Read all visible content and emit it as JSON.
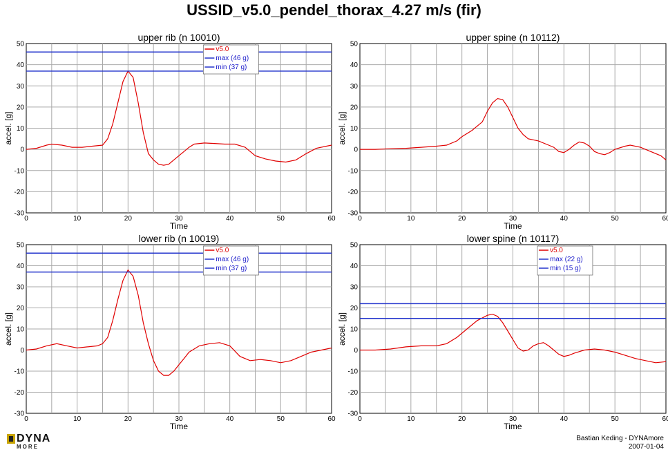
{
  "title": "USSID_v5.0_pendel_thorax_4.27 m/s (fir)",
  "footer": {
    "logo_text": "DYNA",
    "logo_sub": "MORE",
    "author": "Bastian Keding - DYNAmore",
    "date": "2007-01-04"
  },
  "chart_data": [
    {
      "type": "line",
      "title": "upper  rib (n 10010)",
      "xlabel": "Time",
      "ylabel": "accel. [g]",
      "xlim": [
        0,
        60
      ],
      "ylim": [
        -30,
        50
      ],
      "xticks": [
        0,
        10,
        20,
        30,
        40,
        50,
        60
      ],
      "yticks": [
        -30,
        -20,
        -10,
        0,
        10,
        20,
        30,
        40,
        50
      ],
      "grid": true,
      "legend_position": "top-center",
      "series": [
        {
          "name": "v5.0",
          "color": "#e00000",
          "x": [
            0,
            2,
            4,
            5,
            7,
            9,
            11,
            13,
            15,
            16,
            17,
            18,
            19,
            20,
            21,
            22,
            23,
            24,
            25,
            26,
            27,
            28,
            29,
            30,
            31,
            32,
            33,
            35,
            37,
            39,
            41,
            43,
            45,
            47,
            49,
            51,
            53,
            55,
            57,
            59,
            60
          ],
          "y": [
            0,
            0.5,
            2,
            2.5,
            2,
            1,
            1,
            1.5,
            2,
            5,
            12,
            22,
            32,
            37,
            34,
            22,
            8,
            -2,
            -5,
            -7,
            -7.5,
            -7,
            -5,
            -3,
            -1,
            1,
            2.5,
            3,
            2.8,
            2.5,
            2.5,
            1,
            -3,
            -4.5,
            -5.5,
            -6,
            -5,
            -2,
            0.5,
            1.5,
            2
          ]
        },
        {
          "name": "max (46 g)",
          "color": "#2233cc",
          "const": 46
        },
        {
          "name": "min (37 g)",
          "color": "#2233cc",
          "const": 37
        }
      ]
    },
    {
      "type": "line",
      "title": "upper spine (n 10112)",
      "xlabel": "Time",
      "ylabel": "accel. [g]",
      "xlim": [
        0,
        60
      ],
      "ylim": [
        -30,
        50
      ],
      "xticks": [
        0,
        10,
        20,
        30,
        40,
        50,
        60
      ],
      "yticks": [
        -30,
        -20,
        -10,
        0,
        10,
        20,
        30,
        40,
        50
      ],
      "grid": true,
      "legend_position": "none",
      "series": [
        {
          "name": "",
          "color": "#e00000",
          "x": [
            0,
            3,
            6,
            9,
            12,
            15,
            17,
            19,
            20,
            22,
            24,
            25,
            26,
            27,
            28,
            29,
            30,
            31,
            32,
            33,
            35,
            37,
            38,
            39,
            40,
            41,
            42,
            43,
            44,
            45,
            46,
            47,
            48,
            49,
            50,
            52,
            53,
            55,
            57,
            59,
            60
          ],
          "y": [
            0,
            0,
            0.3,
            0.5,
            1,
            1.5,
            2,
            4,
            6,
            9,
            13,
            18,
            22,
            24,
            23.5,
            20,
            15,
            10,
            7,
            5,
            4,
            2,
            1,
            -1,
            -1.5,
            0,
            2,
            3.5,
            3,
            1.5,
            -1,
            -2,
            -2.5,
            -1.5,
            0,
            1.5,
            2,
            1,
            -1,
            -3,
            -5
          ]
        }
      ]
    },
    {
      "type": "line",
      "title": "lower rib (n 10019)",
      "xlabel": "Time",
      "ylabel": "accel. [g]",
      "xlim": [
        0,
        60
      ],
      "ylim": [
        -30,
        50
      ],
      "xticks": [
        0,
        10,
        20,
        30,
        40,
        50,
        60
      ],
      "yticks": [
        -30,
        -20,
        -10,
        0,
        10,
        20,
        30,
        40,
        50
      ],
      "grid": true,
      "legend_position": "top-center",
      "series": [
        {
          "name": "v5.0",
          "color": "#e00000",
          "x": [
            0,
            2,
            4,
            6,
            8,
            10,
            12,
            14,
            15,
            16,
            17,
            18,
            19,
            20,
            21,
            22,
            23,
            24,
            25,
            26,
            27,
            28,
            29,
            30,
            31,
            32,
            34,
            36,
            38,
            40,
            42,
            44,
            46,
            48,
            50,
            52,
            54,
            56,
            58,
            60
          ],
          "y": [
            0,
            0.5,
            2,
            3,
            2,
            1,
            1.5,
            2,
            3,
            6,
            14,
            24,
            33,
            38,
            35,
            26,
            13,
            3,
            -5,
            -10,
            -12,
            -12,
            -10,
            -7,
            -4,
            -1,
            2,
            3,
            3.5,
            2,
            -3,
            -5,
            -4.5,
            -5,
            -6,
            -5,
            -3,
            -1,
            0,
            1
          ]
        },
        {
          "name": "max (46 g)",
          "color": "#2233cc",
          "const": 46
        },
        {
          "name": "min (37 g)",
          "color": "#2233cc",
          "const": 37
        }
      ]
    },
    {
      "type": "line",
      "title": "lower spine (n 10117)",
      "xlabel": "Time",
      "ylabel": "accel. [g]",
      "xlim": [
        0,
        60
      ],
      "ylim": [
        -30,
        50
      ],
      "xticks": [
        0,
        10,
        20,
        30,
        40,
        50,
        60
      ],
      "yticks": [
        -30,
        -20,
        -10,
        0,
        10,
        20,
        30,
        40,
        50
      ],
      "grid": true,
      "legend_position": "top-center",
      "series": [
        {
          "name": "v5.0",
          "color": "#e00000",
          "x": [
            0,
            3,
            6,
            9,
            12,
            15,
            17,
            19,
            21,
            23,
            25,
            26,
            27,
            28,
            29,
            30,
            31,
            32,
            33,
            34,
            35,
            36,
            37,
            38,
            39,
            40,
            41,
            42,
            44,
            46,
            48,
            50,
            52,
            54,
            56,
            58,
            60
          ],
          "y": [
            0,
            0,
            0.5,
            1.5,
            2,
            2,
            3,
            6,
            10,
            14,
            16.5,
            17,
            16,
            13,
            9,
            5,
            1,
            -0.5,
            0,
            2,
            3,
            3.5,
            2,
            0,
            -2,
            -3,
            -2.5,
            -1.5,
            0,
            0.5,
            0,
            -1,
            -2.5,
            -4,
            -5,
            -6,
            -5.5
          ]
        },
        {
          "name": "max (22 g)",
          "color": "#2233cc",
          "const": 22
        },
        {
          "name": "min (15 g)",
          "color": "#2233cc",
          "const": 15
        }
      ]
    }
  ]
}
